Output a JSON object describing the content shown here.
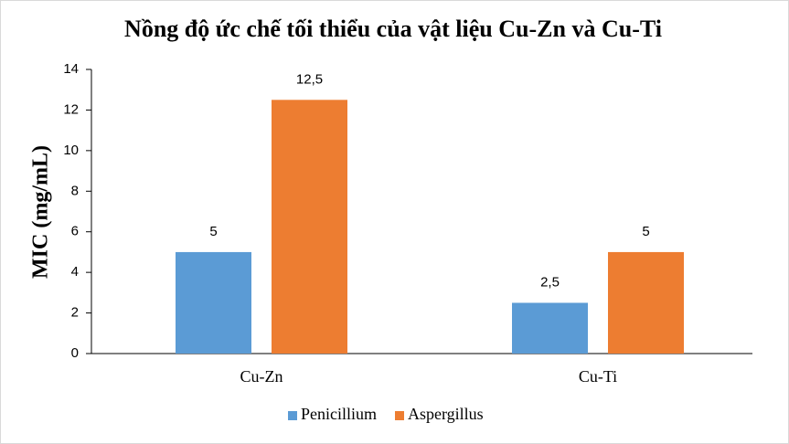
{
  "chart_data": {
    "type": "bar",
    "title": "Nồng độ ức chế tối thiểu của vật liệu Cu-Zn và Cu-Ti",
    "y_label": "MIC (mg/mL)",
    "categories": [
      "Cu-Zn",
      "Cu-Ti"
    ],
    "series": [
      {
        "name": "Penicillium",
        "color": "#5b9bd5",
        "values": [
          5,
          2.5
        ],
        "value_labels": [
          "5",
          "2,5"
        ]
      },
      {
        "name": "Aspergillus",
        "color": "#ed7d31",
        "values": [
          12.5,
          5
        ],
        "value_labels": [
          "12,5",
          "5"
        ]
      }
    ],
    "ylim": [
      0,
      14
    ],
    "yticks": [
      0,
      2,
      4,
      6,
      8,
      10,
      12,
      14
    ],
    "grid": false,
    "legend": "bottom"
  }
}
